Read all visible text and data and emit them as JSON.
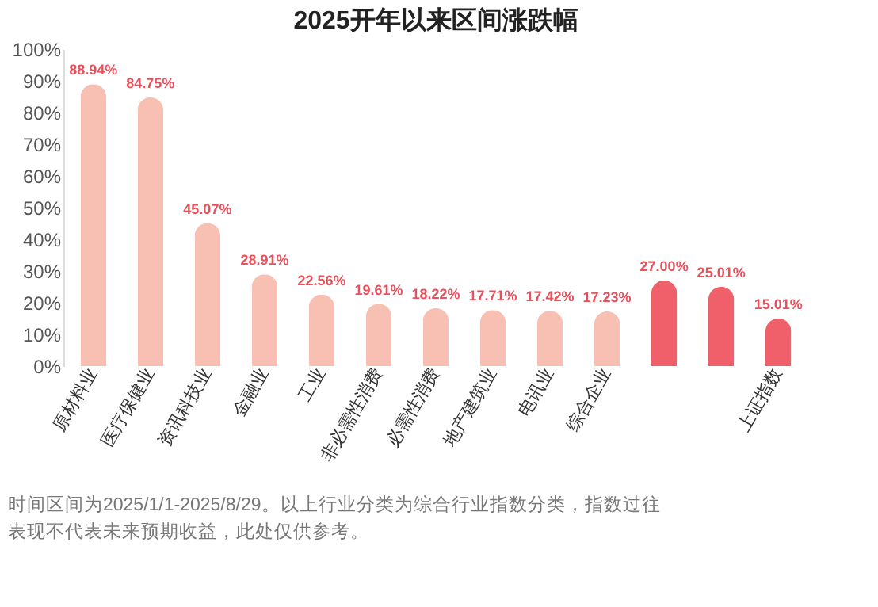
{
  "chart_data": {
    "type": "bar",
    "title": "2025开年以来区间涨跌幅",
    "categories": [
      "原材料业",
      "医疗保健业",
      "资讯科技业",
      "金融业",
      "工业",
      "非必需性消费",
      "必需性消费",
      "地产建筑业",
      "电讯业",
      "综合企业",
      null,
      null,
      "上证指数"
    ],
    "values": [
      88.94,
      84.75,
      45.07,
      28.91,
      22.56,
      19.61,
      18.22,
      17.71,
      17.42,
      17.23,
      27.0,
      25.01,
      15.01
    ],
    "colors": [
      "#f7c0b2",
      "#f7c0b2",
      "#f7c0b2",
      "#f7c0b2",
      "#f7c0b2",
      "#f7c0b2",
      "#f7c0b2",
      "#f7c0b2",
      "#f7c0b2",
      "#f7c0b2",
      "#f0606a",
      "#f0606a",
      "#f0606a"
    ],
    "value_labels": [
      "88.94%",
      "84.75%",
      "45.07%",
      "28.91%",
      "22.56%",
      "19.61%",
      "18.22%",
      "17.71%",
      "17.42%",
      "17.23%",
      "27.00%",
      "25.01%",
      "15.01%"
    ],
    "ylim": [
      0,
      100
    ],
    "yticks": [
      {
        "value": 0,
        "label": "0%"
      },
      {
        "value": 10,
        "label": "10%"
      },
      {
        "value": 20,
        "label": "20%"
      },
      {
        "value": 30,
        "label": "30%"
      },
      {
        "value": 40,
        "label": "40%"
      },
      {
        "value": 50,
        "label": "50%"
      },
      {
        "value": 60,
        "label": "60%"
      },
      {
        "value": 70,
        "label": "70%"
      },
      {
        "value": 80,
        "label": "80%"
      },
      {
        "value": 90,
        "label": "90%"
      },
      {
        "value": 100,
        "label": "100%"
      }
    ],
    "grid": false,
    "annotations": [
      "时间区间为2025/1/1-2025/8/29。以上行业分类为综合行业指数分类，指数过往表现不代表未来预期收益，此处仅供参考。"
    ]
  }
}
